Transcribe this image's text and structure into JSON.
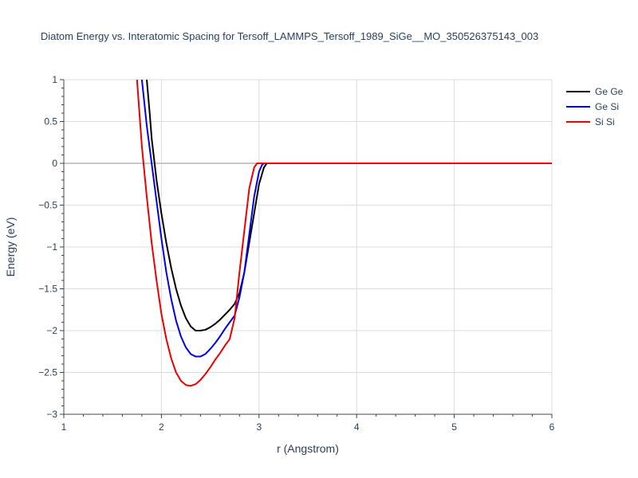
{
  "chart_data": {
    "type": "line",
    "title": "Diatom Energy vs. Interatomic Spacing for Tersoff_LAMMPS_Tersoff_1989_SiGe__MO_350526375143_003",
    "xlabel": "r (Angstrom)",
    "ylabel": "Energy (eV)",
    "xlim": [
      1,
      6
    ],
    "ylim": [
      -3,
      1
    ],
    "xticks": [
      1,
      2,
      3,
      4,
      5,
      6
    ],
    "xtick_labels": [
      "1",
      "2",
      "3",
      "4",
      "5",
      "6"
    ],
    "yticks": [
      1,
      0.5,
      0,
      -0.5,
      -1,
      -1.5,
      -2,
      -2.5,
      -3
    ],
    "ytick_labels": [
      "1",
      "0.5",
      "0",
      "−0.5",
      "−1",
      "−1.5",
      "−2",
      "−2.5",
      "−3"
    ],
    "grid": true,
    "legend_position": "top-right",
    "series": [
      {
        "name": "Ge Ge",
        "color": "#000000",
        "x": [
          1.85,
          1.88,
          1.9,
          1.95,
          2.0,
          2.05,
          2.1,
          2.15,
          2.2,
          2.25,
          2.3,
          2.35,
          2.4,
          2.45,
          2.5,
          2.55,
          2.6,
          2.65,
          2.7,
          2.75,
          2.8,
          2.85,
          2.9,
          2.95,
          3.0,
          3.05,
          3.08,
          3.1,
          3.2,
          4,
          5,
          6
        ],
        "y": [
          1.0,
          0.6,
          0.3,
          -0.2,
          -0.6,
          -0.95,
          -1.25,
          -1.5,
          -1.7,
          -1.85,
          -1.95,
          -2.0,
          -2.0,
          -1.99,
          -1.96,
          -1.92,
          -1.87,
          -1.81,
          -1.75,
          -1.68,
          -1.55,
          -1.3,
          -0.95,
          -0.6,
          -0.25,
          -0.05,
          0.0,
          0.0,
          0.0,
          0.0,
          0.0,
          0.0
        ]
      },
      {
        "name": "Ge Si",
        "color": "#0000ee",
        "x": [
          1.8,
          1.85,
          1.9,
          1.95,
          2.0,
          2.05,
          2.1,
          2.15,
          2.2,
          2.25,
          2.3,
          2.35,
          2.4,
          2.45,
          2.5,
          2.55,
          2.6,
          2.65,
          2.7,
          2.75,
          2.8,
          2.85,
          2.9,
          2.95,
          3.0,
          3.03,
          3.05,
          3.1,
          4,
          5,
          6
        ],
        "y": [
          1.0,
          0.45,
          0.0,
          -0.45,
          -0.9,
          -1.3,
          -1.62,
          -1.88,
          -2.07,
          -2.2,
          -2.28,
          -2.31,
          -2.31,
          -2.28,
          -2.22,
          -2.15,
          -2.07,
          -1.98,
          -1.9,
          -1.82,
          -1.6,
          -1.3,
          -0.85,
          -0.4,
          -0.1,
          -0.02,
          0.0,
          0.0,
          0.0,
          0.0,
          0.0
        ]
      },
      {
        "name": "Si Si",
        "color": "#ee0000",
        "x": [
          1.75,
          1.8,
          1.85,
          1.9,
          1.95,
          2.0,
          2.05,
          2.1,
          2.15,
          2.2,
          2.25,
          2.3,
          2.35,
          2.4,
          2.45,
          2.5,
          2.55,
          2.6,
          2.65,
          2.7,
          2.75,
          2.8,
          2.85,
          2.9,
          2.95,
          2.98,
          3.0,
          3.05,
          4,
          5,
          6
        ],
        "y": [
          1.0,
          0.2,
          -0.4,
          -0.95,
          -1.4,
          -1.8,
          -2.1,
          -2.33,
          -2.5,
          -2.6,
          -2.65,
          -2.66,
          -2.64,
          -2.59,
          -2.52,
          -2.44,
          -2.35,
          -2.27,
          -2.18,
          -2.1,
          -1.85,
          -1.3,
          -0.8,
          -0.3,
          -0.05,
          0.0,
          0.0,
          0.0,
          0.0,
          0.0,
          0.0
        ]
      }
    ]
  }
}
